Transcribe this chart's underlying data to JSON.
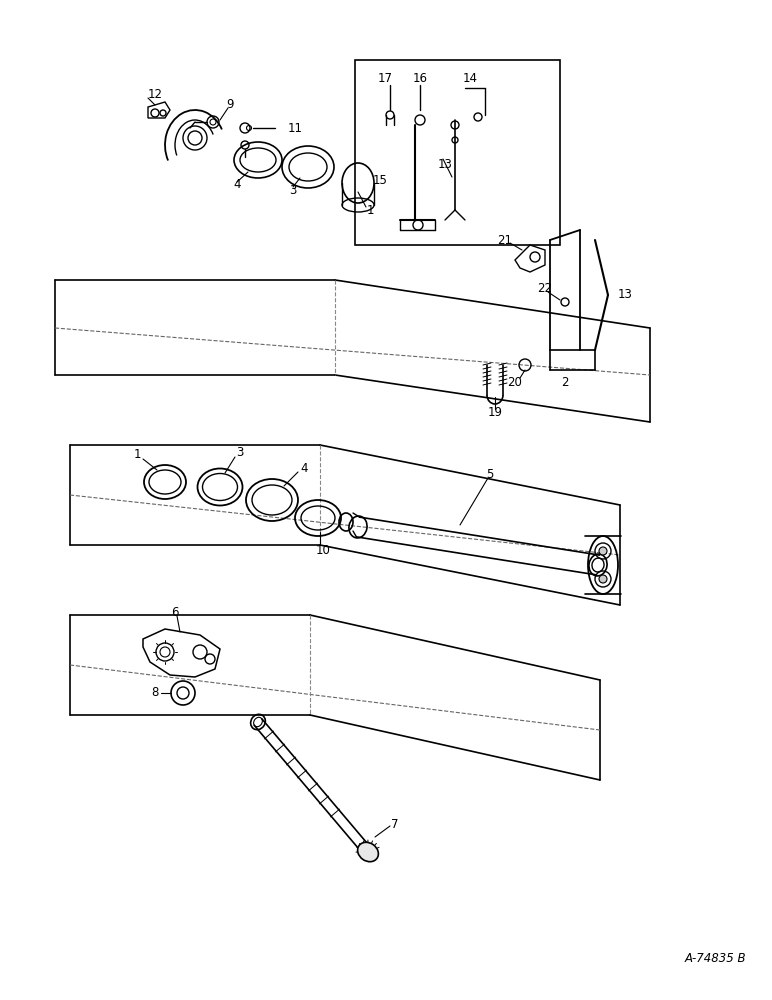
{
  "background_color": "#ffffff",
  "line_color": "#000000",
  "figure_width": 7.72,
  "figure_height": 10.0,
  "dpi": 100,
  "watermark_text": "A-74835 B",
  "watermark_fontsize": 8.5
}
